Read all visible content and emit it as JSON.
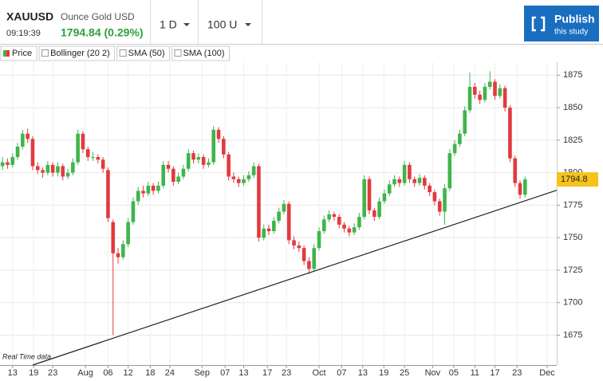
{
  "header": {
    "symbol": "XAUUSD",
    "time": "09:19:39",
    "description": "Ounce Gold USD",
    "quote": "1794.84 (0.29%)",
    "interval": "1 D",
    "units": "100 U",
    "publish": "Publish",
    "publish_sub": "this study"
  },
  "chart_data": {
    "type": "candlestick",
    "legend": [
      "Price",
      "Bollinger (20 2)",
      "SMA (50)",
      "SMA (100)"
    ],
    "note": "Real Time data",
    "up_color": "#3fb54a",
    "down_color": "#e23a3f",
    "grid": true,
    "last_price": 1794.8,
    "ylim": [
      1652,
      1885
    ],
    "yticks": [
      1675,
      1700,
      1725,
      1750,
      1775,
      1800,
      1825,
      1850,
      1875
    ],
    "xlim": [
      -0.5,
      110.3
    ],
    "xticks": [
      {
        "value": 2,
        "label": "13"
      },
      {
        "value": 6.2,
        "label": "19"
      },
      {
        "value": 10,
        "label": "23"
      },
      {
        "value": 16.5,
        "label": "Aug"
      },
      {
        "value": 21,
        "label": "06"
      },
      {
        "value": 25,
        "label": "12"
      },
      {
        "value": 29.4,
        "label": "18"
      },
      {
        "value": 33.3,
        "label": "24"
      },
      {
        "value": 39.7,
        "label": "Sep"
      },
      {
        "value": 44.3,
        "label": "07"
      },
      {
        "value": 48,
        "label": "13"
      },
      {
        "value": 52.7,
        "label": "17"
      },
      {
        "value": 56.5,
        "label": "23"
      },
      {
        "value": 63,
        "label": "Oct"
      },
      {
        "value": 67.5,
        "label": "07"
      },
      {
        "value": 71.7,
        "label": "13"
      },
      {
        "value": 75.9,
        "label": "19"
      },
      {
        "value": 80,
        "label": "25"
      },
      {
        "value": 85.6,
        "label": "Nov"
      },
      {
        "value": 89.8,
        "label": "05"
      },
      {
        "value": 94,
        "label": "11"
      },
      {
        "value": 98,
        "label": "17"
      },
      {
        "value": 102.4,
        "label": "23"
      },
      {
        "value": 108.4,
        "label": "Dec"
      }
    ],
    "trendline": [
      [
        6,
        1652
      ],
      [
        110.3,
        1786.5
      ]
    ],
    "candles": [
      [
        1805,
        1812,
        1802,
        1808
      ],
      [
        1808,
        1811,
        1803,
        1806
      ],
      [
        1806,
        1815,
        1804,
        1812
      ],
      [
        1812,
        1823,
        1810,
        1820
      ],
      [
        1820,
        1833,
        1818,
        1830
      ],
      [
        1830,
        1834,
        1823,
        1826
      ],
      [
        1826,
        1828,
        1802,
        1805
      ],
      [
        1805,
        1808,
        1799,
        1802
      ],
      [
        1802,
        1804,
        1796,
        1800
      ],
      [
        1800,
        1809,
        1798,
        1806
      ],
      [
        1806,
        1808,
        1797,
        1800
      ],
      [
        1800,
        1808,
        1797,
        1805
      ],
      [
        1805,
        1807,
        1794,
        1797
      ],
      [
        1797,
        1803,
        1795,
        1800
      ],
      [
        1800,
        1811,
        1798,
        1808
      ],
      [
        1808,
        1833,
        1806,
        1830
      ],
      [
        1830,
        1832,
        1815,
        1818
      ],
      [
        1818,
        1820,
        1809,
        1812
      ],
      [
        1812,
        1816,
        1809,
        1812
      ],
      [
        1812,
        1814,
        1807,
        1810
      ],
      [
        1810,
        1812,
        1800,
        1803
      ],
      [
        1802,
        1804,
        1762,
        1765
      ],
      [
        1762,
        1764,
        1675,
        1738
      ],
      [
        1738,
        1742,
        1730,
        1735
      ],
      [
        1735,
        1748,
        1733,
        1745
      ],
      [
        1745,
        1765,
        1743,
        1762
      ],
      [
        1762,
        1781,
        1760,
        1778
      ],
      [
        1778,
        1789,
        1775,
        1786
      ],
      [
        1786,
        1790,
        1781,
        1784
      ],
      [
        1784,
        1793,
        1782,
        1790
      ],
      [
        1790,
        1792,
        1783,
        1786
      ],
      [
        1786,
        1793,
        1784,
        1790
      ],
      [
        1790,
        1809,
        1788,
        1806
      ],
      [
        1806,
        1809,
        1800,
        1803
      ],
      [
        1803,
        1805,
        1790,
        1793
      ],
      [
        1793,
        1800,
        1791,
        1797
      ],
      [
        1797,
        1806,
        1795,
        1803
      ],
      [
        1803,
        1818,
        1801,
        1815
      ],
      [
        1815,
        1817,
        1807,
        1810
      ],
      [
        1810,
        1815,
        1807,
        1812
      ],
      [
        1812,
        1814,
        1803,
        1806
      ],
      [
        1806,
        1811,
        1804,
        1808
      ],
      [
        1808,
        1836,
        1806,
        1833
      ],
      [
        1833,
        1835,
        1823,
        1826
      ],
      [
        1826,
        1828,
        1811,
        1814
      ],
      [
        1814,
        1816,
        1794,
        1797
      ],
      [
        1797,
        1800,
        1792,
        1795
      ],
      [
        1795,
        1797,
        1789,
        1792
      ],
      [
        1792,
        1798,
        1790,
        1795
      ],
      [
        1795,
        1801,
        1793,
        1798
      ],
      [
        1798,
        1808,
        1796,
        1805
      ],
      [
        1805,
        1807,
        1747,
        1750
      ],
      [
        1750,
        1760,
        1748,
        1757
      ],
      [
        1757,
        1760,
        1752,
        1755
      ],
      [
        1755,
        1766,
        1753,
        1763
      ],
      [
        1763,
        1773,
        1761,
        1770
      ],
      [
        1770,
        1779,
        1768,
        1776
      ],
      [
        1776,
        1778,
        1745,
        1748
      ],
      [
        1748,
        1751,
        1741,
        1744
      ],
      [
        1744,
        1747,
        1739,
        1742
      ],
      [
        1742,
        1744,
        1729,
        1732
      ],
      [
        1732,
        1735,
        1722,
        1726
      ],
      [
        1726,
        1745,
        1724,
        1742
      ],
      [
        1742,
        1758,
        1740,
        1755
      ],
      [
        1755,
        1767,
        1753,
        1764
      ],
      [
        1764,
        1771,
        1762,
        1768
      ],
      [
        1768,
        1770,
        1763,
        1766
      ],
      [
        1766,
        1768,
        1757,
        1760
      ],
      [
        1760,
        1762,
        1754,
        1757
      ],
      [
        1757,
        1759,
        1751,
        1754
      ],
      [
        1754,
        1761,
        1752,
        1758
      ],
      [
        1758,
        1769,
        1756,
        1766
      ],
      [
        1766,
        1798,
        1764,
        1795
      ],
      [
        1795,
        1797,
        1768,
        1771
      ],
      [
        1771,
        1773,
        1763,
        1766
      ],
      [
        1766,
        1781,
        1764,
        1778
      ],
      [
        1778,
        1787,
        1776,
        1784
      ],
      [
        1784,
        1794,
        1782,
        1791
      ],
      [
        1791,
        1798,
        1789,
        1795
      ],
      [
        1795,
        1797,
        1789,
        1792
      ],
      [
        1792,
        1809,
        1790,
        1806
      ],
      [
        1806,
        1808,
        1792,
        1795
      ],
      [
        1795,
        1797,
        1789,
        1792
      ],
      [
        1792,
        1799,
        1790,
        1796
      ],
      [
        1796,
        1798,
        1787,
        1790
      ],
      [
        1790,
        1792,
        1782,
        1785
      ],
      [
        1785,
        1787,
        1775,
        1778
      ],
      [
        1778,
        1780,
        1767,
        1770
      ],
      [
        1770,
        1791,
        1760,
        1788
      ],
      [
        1788,
        1818,
        1786,
        1815
      ],
      [
        1815,
        1825,
        1813,
        1822
      ],
      [
        1822,
        1833,
        1820,
        1830
      ],
      [
        1830,
        1851,
        1828,
        1848
      ],
      [
        1848,
        1877,
        1846,
        1866
      ],
      [
        1866,
        1869,
        1857,
        1860
      ],
      [
        1860,
        1863,
        1853,
        1856
      ],
      [
        1856,
        1869,
        1854,
        1866
      ],
      [
        1866,
        1878,
        1864,
        1870
      ],
      [
        1870,
        1872,
        1856,
        1859
      ],
      [
        1859,
        1868,
        1857,
        1865
      ],
      [
        1865,
        1867,
        1847,
        1850
      ],
      [
        1850,
        1852,
        1808,
        1811
      ],
      [
        1811,
        1813,
        1789,
        1792
      ],
      [
        1792,
        1794,
        1780,
        1783
      ],
      [
        1783,
        1797,
        1781,
        1794.8
      ]
    ]
  }
}
